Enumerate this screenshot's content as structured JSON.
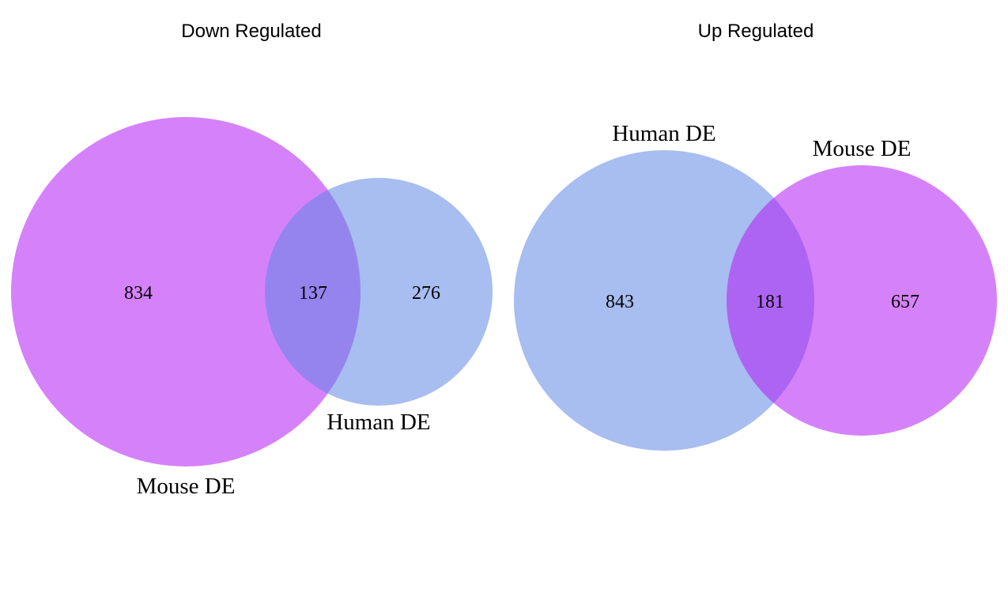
{
  "colors": {
    "mouse_de": "#b31bf5",
    "human_de": "#6186e3"
  },
  "panels": [
    {
      "title": "Down Regulated",
      "sets": [
        {
          "label": "Mouse DE",
          "color_key": "mouse_de"
        },
        {
          "label": "Human DE",
          "color_key": "human_de"
        }
      ],
      "counts": {
        "mouse_only": "834",
        "overlap": "137",
        "human_only": "276"
      }
    },
    {
      "title": "Up Regulated",
      "sets": [
        {
          "label": "Human DE",
          "color_key": "human_de"
        },
        {
          "label": "Mouse DE",
          "color_key": "mouse_de"
        }
      ],
      "counts": {
        "human_only": "843",
        "overlap": "181",
        "mouse_only": "657"
      }
    }
  ]
}
